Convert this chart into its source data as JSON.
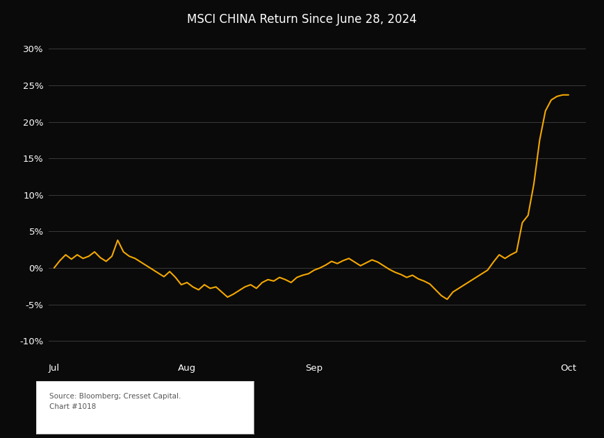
{
  "title": "MSCI CHINA Return Since June 28, 2024",
  "background_color": "#0a0a0a",
  "plot_bg_color": "#0a0a0a",
  "text_color": "#ffffff",
  "line_color": "#F5A800",
  "grid_color": "#3a3a3a",
  "source_text": "Source: Bloomberg; Cresset Capital.\nChart #1018",
  "yticks": [
    -0.1,
    -0.05,
    0.0,
    0.05,
    0.1,
    0.15,
    0.2,
    0.25,
    0.3
  ],
  "ytick_labels": [
    "-10%",
    "-5%",
    "0%",
    "5%",
    "10%",
    "15%",
    "20%",
    "25%",
    "30%"
  ],
  "ylim": [
    -0.125,
    0.325
  ],
  "x_values": [
    0,
    1,
    2,
    3,
    4,
    5,
    6,
    7,
    8,
    9,
    10,
    11,
    12,
    13,
    14,
    15,
    16,
    17,
    18,
    19,
    20,
    21,
    22,
    23,
    24,
    25,
    26,
    27,
    28,
    29,
    30,
    31,
    32,
    33,
    34,
    35,
    36,
    37,
    38,
    39,
    40,
    41,
    42,
    43,
    44,
    45,
    46,
    47,
    48,
    49,
    50,
    51,
    52,
    53,
    54,
    55,
    56,
    57,
    58,
    59,
    60,
    61,
    62,
    63,
    64,
    65,
    66,
    67,
    68,
    69,
    70,
    71,
    72,
    73,
    74,
    75,
    76,
    77,
    78,
    79,
    80,
    81,
    82,
    83,
    84,
    85,
    86,
    87,
    88,
    89
  ],
  "y_values": [
    0.0,
    0.01,
    0.018,
    0.012,
    0.018,
    0.013,
    0.016,
    0.022,
    0.014,
    0.009,
    0.016,
    0.038,
    0.022,
    0.016,
    0.013,
    0.008,
    0.003,
    -0.002,
    -0.007,
    -0.012,
    -0.005,
    -0.013,
    -0.023,
    -0.02,
    -0.026,
    -0.03,
    -0.023,
    -0.028,
    -0.026,
    -0.033,
    -0.04,
    -0.036,
    -0.031,
    -0.026,
    -0.023,
    -0.028,
    -0.02,
    -0.016,
    -0.018,
    -0.013,
    -0.016,
    -0.02,
    -0.013,
    -0.01,
    -0.008,
    -0.003,
    0.0,
    0.004,
    0.009,
    0.006,
    0.01,
    0.013,
    0.008,
    0.003,
    0.007,
    0.011,
    0.008,
    0.003,
    -0.002,
    -0.006,
    -0.009,
    -0.013,
    -0.01,
    -0.015,
    -0.018,
    -0.022,
    -0.03,
    -0.038,
    -0.043,
    -0.033,
    -0.028,
    -0.023,
    -0.018,
    -0.013,
    -0.008,
    -0.003,
    0.008,
    0.018,
    0.013,
    0.018,
    0.022,
    0.062,
    0.072,
    0.115,
    0.175,
    0.215,
    0.23,
    0.235,
    0.237,
    0.237
  ],
  "xtick_positions": [
    0,
    23,
    45,
    89
  ],
  "xtick_labels": [
    "Jul",
    "Aug",
    "Sep",
    "Oct"
  ],
  "xlim": [
    -1,
    92
  ]
}
